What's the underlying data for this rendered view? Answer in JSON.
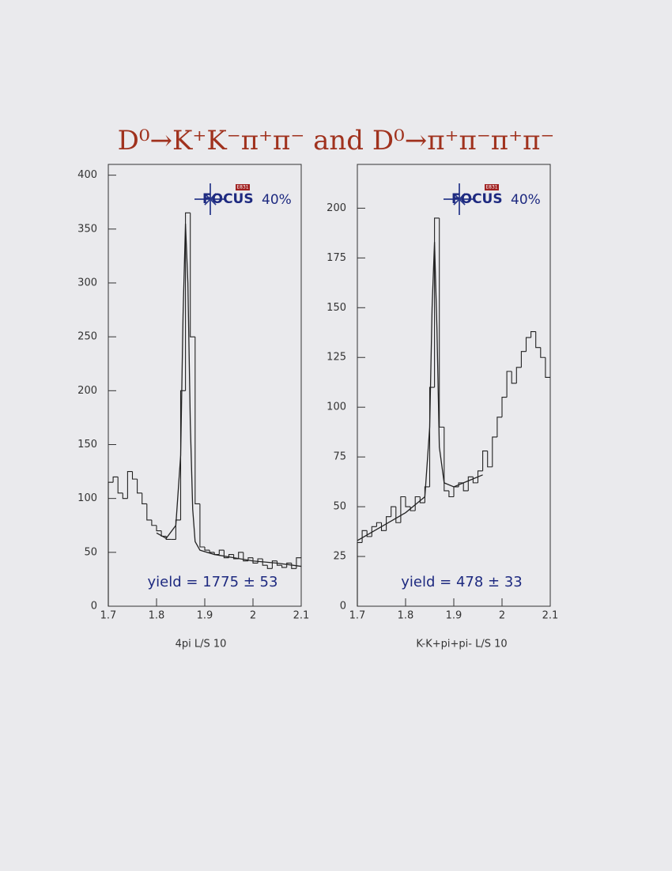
{
  "title": "D⁰→K⁺K⁻π⁺π⁻ and D⁰→π⁺π⁻π⁺π⁻",
  "chart_data": [
    {
      "type": "histogram",
      "x_label": "4pi L/S 10",
      "annotation": "yield = 1775 ± 53",
      "logo": "FOCUS",
      "logo_tag": "E831",
      "logo_note": "40%",
      "color": "#222222",
      "bins": [
        1.7,
        1.71,
        1.72,
        1.73,
        1.74,
        1.75,
        1.76,
        1.77,
        1.78,
        1.79,
        1.8,
        1.81,
        1.82,
        1.83,
        1.84,
        1.85,
        1.86,
        1.87,
        1.88,
        1.89,
        1.9,
        1.91,
        1.92,
        1.93,
        1.94,
        1.95,
        1.96,
        1.97,
        1.98,
        1.99,
        2,
        2.01,
        2.02,
        2.03,
        2.04,
        2.05,
        2.06,
        2.07,
        2.08,
        2.09,
        2.1
      ],
      "counts": [
        115,
        120,
        105,
        100,
        125,
        118,
        105,
        95,
        80,
        75,
        70,
        65,
        62,
        62,
        80,
        200,
        365,
        250,
        95,
        55,
        52,
        50,
        48,
        52,
        45,
        48,
        44,
        50,
        42,
        45,
        40,
        44,
        38,
        35,
        42,
        38,
        36,
        40,
        35,
        45
      ],
      "fit": {
        "x": [
          1.8,
          1.82,
          1.84,
          1.85,
          1.855,
          1.86,
          1.865,
          1.87,
          1.875,
          1.88,
          1.89,
          1.92,
          1.96,
          2,
          2.05,
          2.1
        ],
        "values": [
          68,
          63,
          75,
          140,
          270,
          355,
          300,
          170,
          90,
          60,
          52,
          48,
          45,
          42,
          40,
          37
        ]
      },
      "xlim": [
        1.7,
        2.1
      ],
      "ylim": [
        0,
        410
      ],
      "xticks": [
        1.7,
        1.8,
        1.9,
        2,
        2.1
      ],
      "yticks": [
        0,
        50,
        100,
        150,
        200,
        250,
        300,
        350,
        400
      ]
    },
    {
      "type": "histogram",
      "x_label": "K-K+pi+pi- L/S 10",
      "annotation": "yield = 478 ± 33",
      "logo": "FOCUS",
      "logo_tag": "E831",
      "logo_note": "40%",
      "color": "#222222",
      "bins": [
        1.7,
        1.71,
        1.72,
        1.73,
        1.74,
        1.75,
        1.76,
        1.77,
        1.78,
        1.79,
        1.8,
        1.81,
        1.82,
        1.83,
        1.84,
        1.85,
        1.86,
        1.87,
        1.88,
        1.89,
        1.9,
        1.91,
        1.92,
        1.93,
        1.94,
        1.95,
        1.96,
        1.97,
        1.98,
        1.99,
        2,
        2.01,
        2.02,
        2.03,
        2.04,
        2.05,
        2.06,
        2.07,
        2.08,
        2.09,
        2.1
      ],
      "counts": [
        32,
        38,
        35,
        40,
        42,
        38,
        45,
        50,
        42,
        55,
        50,
        48,
        55,
        52,
        60,
        110,
        195,
        90,
        58,
        55,
        60,
        62,
        58,
        65,
        62,
        68,
        78,
        70,
        85,
        95,
        105,
        118,
        112,
        120,
        128,
        135,
        138,
        130,
        125,
        115
      ],
      "fit": {
        "x": [
          1.7,
          1.75,
          1.8,
          1.84,
          1.85,
          1.855,
          1.86,
          1.865,
          1.87,
          1.88,
          1.9,
          1.93,
          1.96
        ],
        "values": [
          33,
          40,
          47,
          55,
          90,
          150,
          183,
          140,
          80,
          62,
          60,
          63,
          66
        ]
      },
      "xlim": [
        1.7,
        2.1
      ],
      "ylim": [
        0,
        222
      ],
      "xticks": [
        1.7,
        1.8,
        1.9,
        2,
        2.1
      ],
      "yticks": [
        0,
        25,
        50,
        75,
        100,
        125,
        150,
        175,
        200
      ]
    }
  ]
}
